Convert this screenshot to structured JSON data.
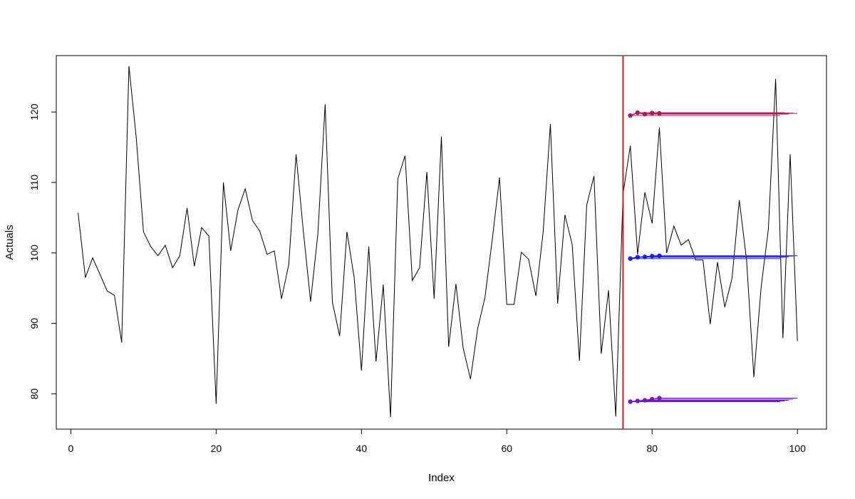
{
  "chart_data": {
    "type": "line",
    "xlabel": "Index",
    "ylabel": "Actuals",
    "xlim": [
      -2,
      104
    ],
    "ylim": [
      75,
      128
    ],
    "x_ticks": [
      0,
      20,
      40,
      60,
      80,
      100
    ],
    "y_ticks": [
      80,
      90,
      100,
      110,
      120
    ],
    "x_tick_labels": [
      "0",
      "20",
      "40",
      "60",
      "80",
      "100"
    ],
    "y_tick_labels": [
      "80",
      "90",
      "100",
      "110",
      "120"
    ],
    "grid": false,
    "legend": "none",
    "actuals": [
      105.7,
      96.5,
      99.3,
      97.0,
      94.6,
      94.0,
      87.3,
      126.5,
      116.4,
      103.0,
      100.9,
      99.6,
      101.1,
      97.9,
      99.6,
      106.4,
      98.1,
      103.6,
      102.4,
      78.6,
      110.0,
      100.3,
      106.1,
      109.1,
      104.6,
      103.1,
      99.8,
      100.3,
      93.5,
      98.4,
      114.0,
      103.1,
      93.1,
      102.7,
      121.1,
      93.0,
      88.2,
      103.0,
      96.5,
      83.3,
      100.9,
      84.6,
      95.5,
      76.7,
      110.5,
      113.8,
      96.1,
      97.9,
      111.5,
      93.5,
      116.5,
      86.7,
      95.6,
      86.5,
      82.1,
      89.3,
      93.7,
      101.9,
      110.7,
      92.7,
      92.7,
      100.1,
      99.1,
      93.9,
      102.9,
      118.3,
      92.8,
      105.4,
      101.2,
      84.7,
      106.8,
      110.9,
      85.7,
      94.7,
      76.8,
      108.4,
      115.2,
      99.8,
      108.6,
      104.2,
      117.8,
      100.0,
      103.8,
      101.1,
      101.9,
      99.0,
      99.0,
      89.9,
      98.7,
      92.3,
      96.4,
      107.5,
      99.0,
      82.4,
      95.1,
      103.4,
      124.7,
      87.9,
      114.0,
      87.5
    ],
    "holdout_x": 76,
    "forecast_origins": [
      77,
      78,
      79,
      80,
      81
    ],
    "forecast_end": 100,
    "forecast_series": [
      {
        "color": "#b5165a",
        "values": [
          119.5,
          119.9,
          119.7,
          119.85,
          119.8
        ]
      },
      {
        "color": "#1a1aff",
        "values": [
          99.2,
          99.4,
          99.45,
          99.55,
          99.6
        ]
      },
      {
        "color": "#7a16c9",
        "values": [
          78.9,
          79.0,
          79.1,
          79.25,
          79.4
        ]
      }
    ],
    "colors": {
      "line": "#000000",
      "holdout": "#e0141a"
    }
  }
}
